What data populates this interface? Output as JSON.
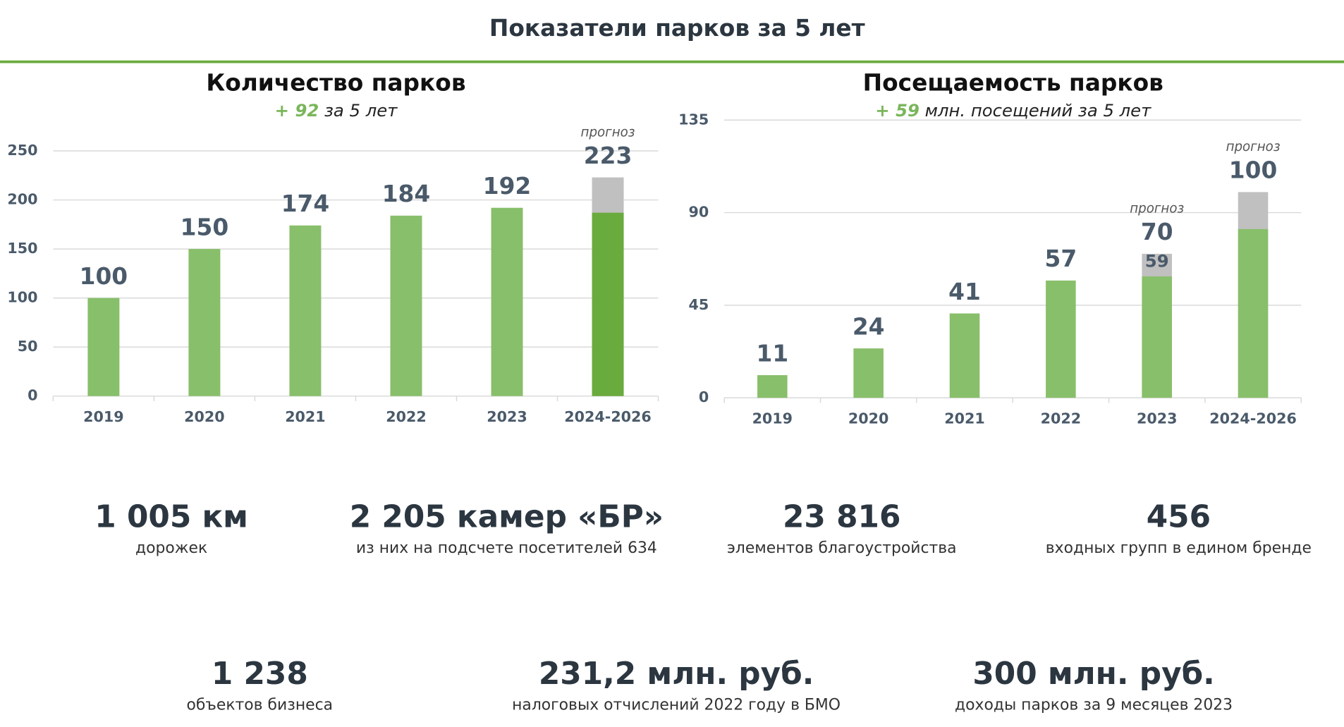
{
  "header": {
    "title": "Показатели парков за 5 лет"
  },
  "chart_data": [
    {
      "type": "bar",
      "title": "Количество парков",
      "subtitle": {
        "highlight": "+ 92",
        "text": "за 5 лет"
      },
      "categories": [
        "2019",
        "2020",
        "2021",
        "2022",
        "2023",
        "2024-2026"
      ],
      "values": [
        100,
        150,
        174,
        184,
        192,
        223
      ],
      "bar_colors": [
        "#88bf6a",
        "#88bf6a",
        "#88bf6a",
        "#88bf6a",
        "#88bf6a",
        "#c0c0c0"
      ],
      "inner_values": [
        null,
        null,
        null,
        null,
        null,
        187
      ],
      "inner_color": "#6aab3e",
      "show_inner_labels": [
        false,
        false,
        false,
        false,
        false,
        false
      ],
      "annotations": [
        {
          "text": "прогноз",
          "index": 5
        }
      ],
      "ylim": [
        0,
        250
      ],
      "yticks": [
        0,
        50,
        100,
        150,
        200,
        250
      ],
      "grid": true
    },
    {
      "type": "bar",
      "title": "Посещаемость парков",
      "subtitle": {
        "highlight": "+ 59",
        "text": "млн. посещений за 5 лет"
      },
      "categories": [
        "2019",
        "2020",
        "2021",
        "2022",
        "2023",
        "2024-2026"
      ],
      "values": [
        11,
        24,
        41,
        57,
        70,
        100
      ],
      "bar_colors": [
        "#88bf6a",
        "#88bf6a",
        "#88bf6a",
        "#88bf6a",
        "#c0c0c0",
        "#c0c0c0"
      ],
      "inner_values": [
        null,
        null,
        null,
        null,
        59,
        82
      ],
      "inner_color": "#88bf6a",
      "show_inner_labels": [
        false,
        false,
        false,
        false,
        true,
        false
      ],
      "annotations": [
        {
          "text": "прогноз",
          "index": 4
        },
        {
          "text": "прогноз",
          "index": 5
        }
      ],
      "ylim": [
        0,
        135
      ],
      "yticks": [
        0,
        45,
        90,
        135
      ],
      "grid": true
    }
  ],
  "stats": [
    {
      "value": "1 005 км",
      "caption": "дорожек"
    },
    {
      "value": "2 205 камер «БР»",
      "caption": "из них на подсчете посетителей 634"
    },
    {
      "value": "23 816",
      "caption": "элементов благоустройства"
    },
    {
      "value": "456",
      "caption": "входных групп в едином бренде"
    },
    {
      "value": "1 238",
      "caption": "объектов бизнеса"
    },
    {
      "value": "231,2 млн. руб.",
      "caption": "налоговых отчислений 2022 году в БМО"
    },
    {
      "value": "300 млн. руб.",
      "caption": "доходы парков за 9 месяцев 2023"
    }
  ]
}
